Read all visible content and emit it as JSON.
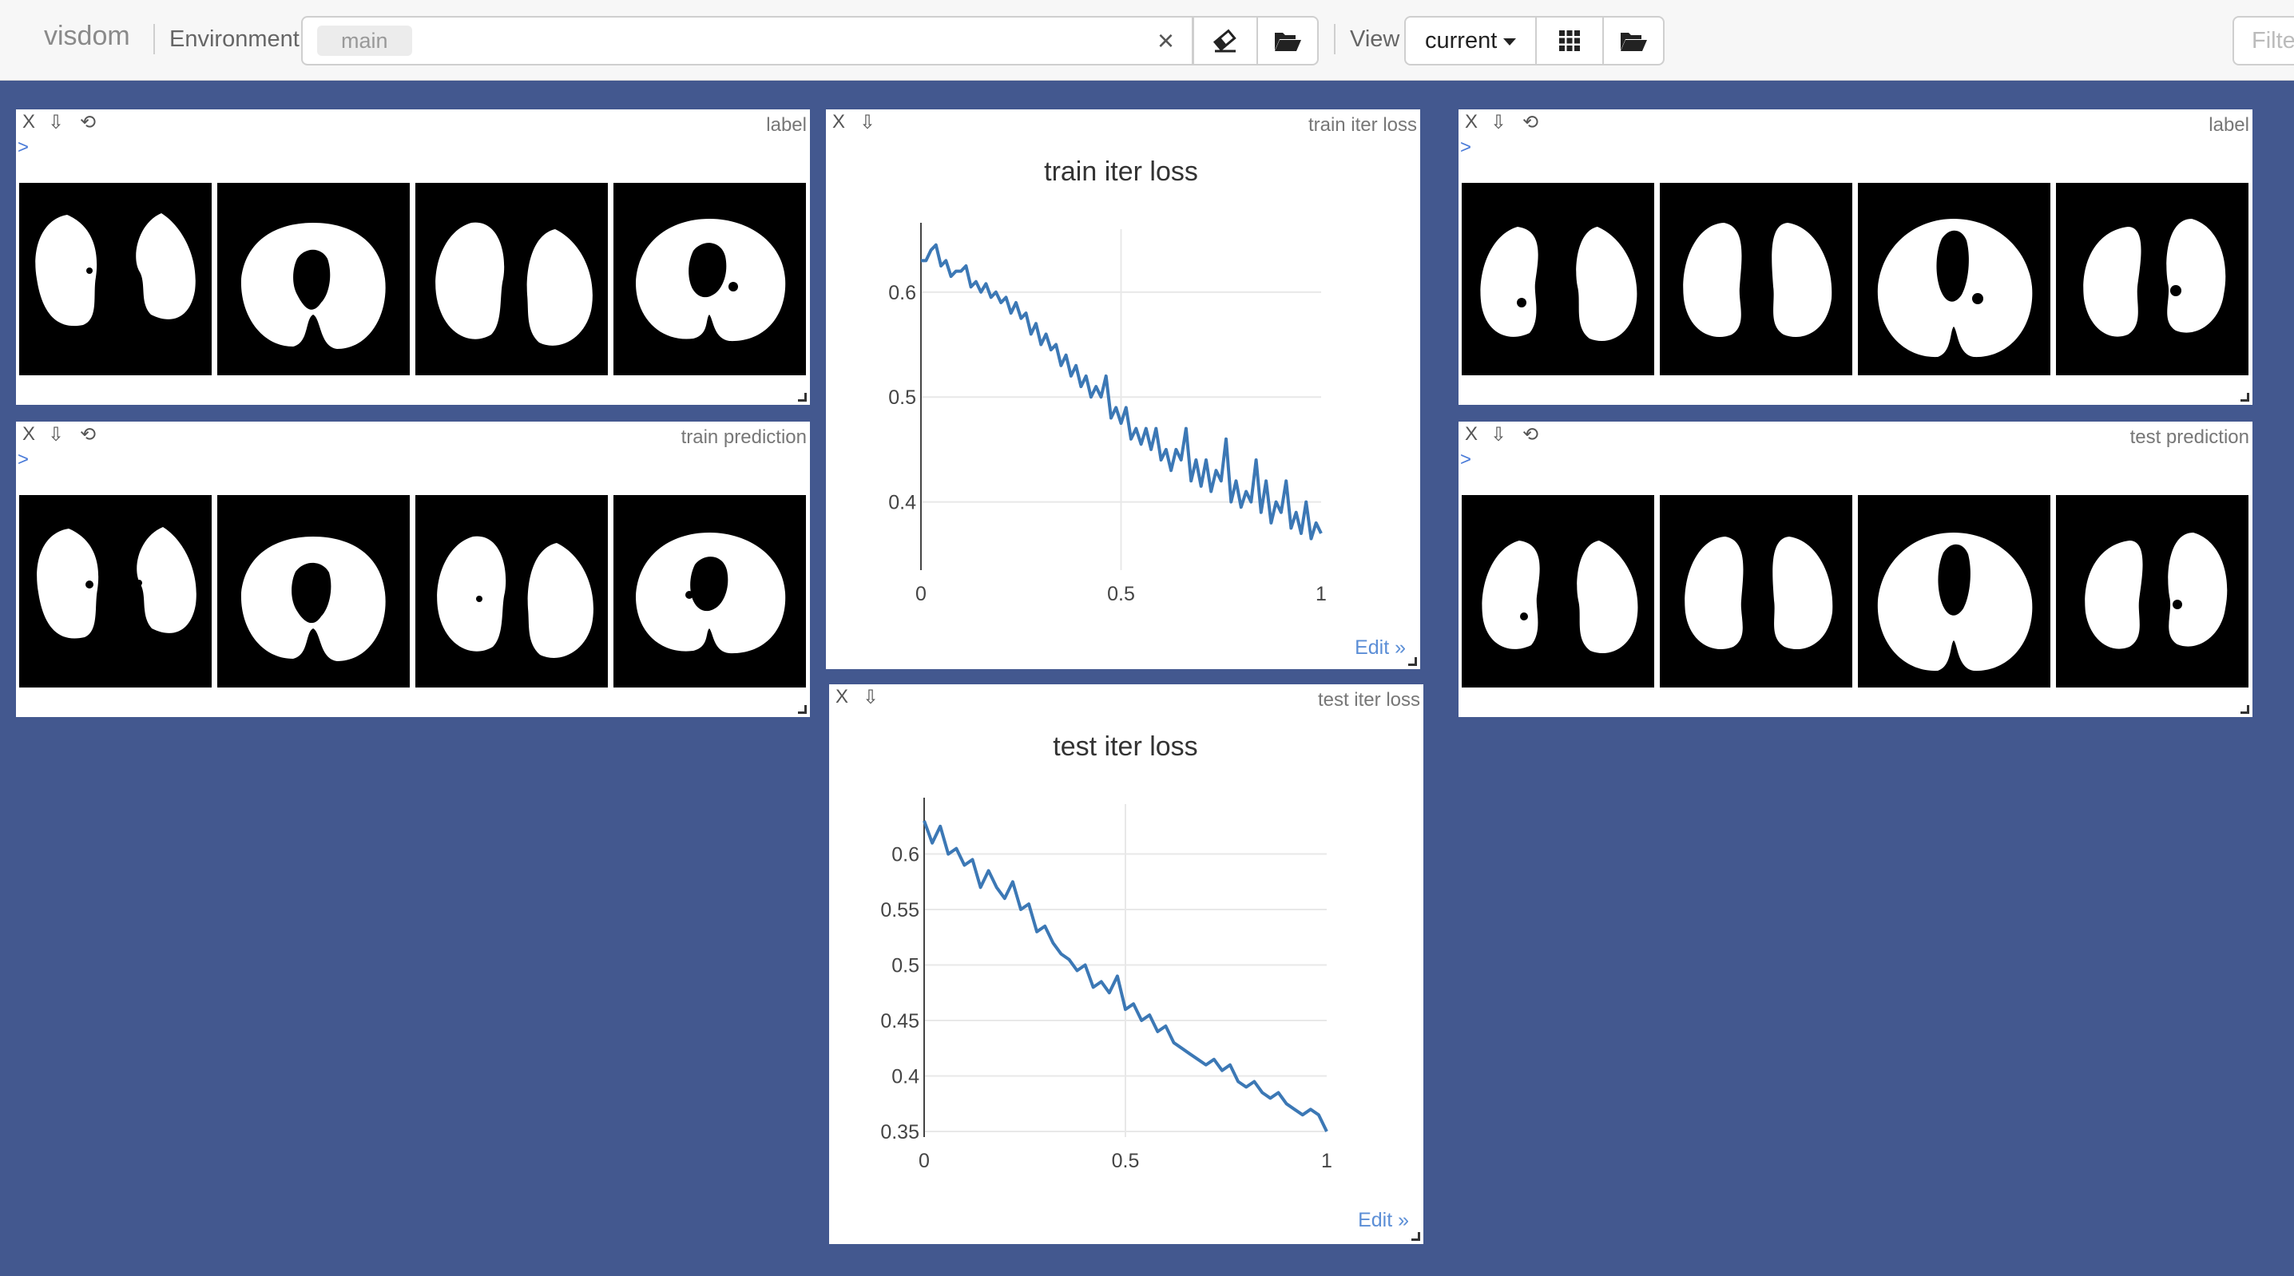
{
  "header": {
    "brand": "visdom",
    "environment_label": "Environment",
    "env_tag": "main",
    "clear_symbol": "×",
    "view_label": "View",
    "view_value": "current",
    "filter_placeholder": "Filte"
  },
  "colors": {
    "background": "#43588f",
    "line": "#3c78b5"
  },
  "panes": {
    "label_left": {
      "title": "label",
      "close": "X",
      "download": "⇩",
      "reset": "⟲",
      "toggle": ">"
    },
    "train_prediction": {
      "title": "train prediction",
      "close": "X",
      "download": "⇩",
      "reset": "⟲",
      "toggle": ">"
    },
    "label_right": {
      "title": "label",
      "close": "X",
      "download": "⇩",
      "reset": "⟲",
      "toggle": ">"
    },
    "test_prediction": {
      "title": "test prediction",
      "close": "X",
      "download": "⇩",
      "reset": "⟲",
      "toggle": ">"
    },
    "train_chart": {
      "title": "train iter loss",
      "close": "X",
      "download": "⇩",
      "edit": "Edit »"
    },
    "test_chart": {
      "title": "test iter loss",
      "close": "X",
      "download": "⇩",
      "edit": "Edit »"
    }
  },
  "chart_data": [
    {
      "type": "line",
      "title": "train iter loss",
      "xlim": [
        0,
        1
      ],
      "ylim": [
        0.335,
        0.66
      ],
      "xticks": [
        0,
        0.5,
        1
      ],
      "yticks": [
        0.4,
        0.5,
        0.6
      ],
      "ytick_labels": [
        "0.4",
        "0.5",
        "0.6"
      ],
      "xtick_labels": [
        "0",
        "0.5",
        "1"
      ],
      "grid": true,
      "x": [
        0,
        0.025,
        0.05,
        0.075,
        0.1,
        0.125,
        0.15,
        0.175,
        0.2,
        0.225,
        0.25,
        0.275,
        0.3,
        0.325,
        0.35,
        0.375,
        0.4,
        0.425,
        0.45,
        0.475,
        0.5,
        0.525,
        0.55,
        0.575,
        0.6,
        0.625,
        0.65,
        0.675,
        0.7,
        0.725,
        0.75,
        0.775,
        0.8,
        0.825,
        0.85,
        0.875,
        0.9,
        0.925,
        0.95,
        0.975,
        1
      ],
      "y": [
        0.63,
        0.64,
        0.625,
        0.615,
        0.62,
        0.605,
        0.6,
        0.595,
        0.59,
        0.58,
        0.575,
        0.56,
        0.55,
        0.545,
        0.53,
        0.52,
        0.51,
        0.5,
        0.5,
        0.48,
        0.475,
        0.46,
        0.455,
        0.45,
        0.44,
        0.43,
        0.44,
        0.42,
        0.415,
        0.41,
        0.42,
        0.4,
        0.395,
        0.4,
        0.39,
        0.38,
        0.39,
        0.375,
        0.37,
        0.365,
        0.37
      ],
      "y_spikes": [
        0.63,
        0.645,
        0.63,
        0.62,
        0.625,
        0.61,
        0.608,
        0.6,
        0.595,
        0.59,
        0.58,
        0.57,
        0.56,
        0.55,
        0.54,
        0.53,
        0.52,
        0.51,
        0.52,
        0.49,
        0.49,
        0.47,
        0.47,
        0.47,
        0.45,
        0.45,
        0.47,
        0.44,
        0.44,
        0.43,
        0.46,
        0.42,
        0.41,
        0.44,
        0.42,
        0.4,
        0.42,
        0.39,
        0.4,
        0.38,
        0.39
      ]
    },
    {
      "type": "line",
      "title": "test iter loss",
      "xlim": [
        0,
        1
      ],
      "ylim": [
        0.345,
        0.645
      ],
      "xticks": [
        0,
        0.5,
        1
      ],
      "yticks": [
        0.35,
        0.4,
        0.45,
        0.5,
        0.55,
        0.6
      ],
      "ytick_labels": [
        "0.35",
        "0.4",
        "0.45",
        "0.5",
        "0.55",
        "0.6"
      ],
      "xtick_labels": [
        "0",
        "0.5",
        "1"
      ],
      "grid": true,
      "x": [
        0,
        0.02,
        0.04,
        0.06,
        0.08,
        0.1,
        0.12,
        0.14,
        0.16,
        0.18,
        0.2,
        0.22,
        0.24,
        0.26,
        0.28,
        0.3,
        0.32,
        0.34,
        0.36,
        0.38,
        0.4,
        0.42,
        0.44,
        0.46,
        0.48,
        0.5,
        0.52,
        0.54,
        0.56,
        0.58,
        0.6,
        0.62,
        0.64,
        0.66,
        0.68,
        0.7,
        0.72,
        0.74,
        0.76,
        0.78,
        0.8,
        0.82,
        0.84,
        0.86,
        0.88,
        0.9,
        0.92,
        0.94,
        0.96,
        0.98,
        1
      ],
      "y": [
        0.63,
        0.61,
        0.625,
        0.6,
        0.605,
        0.59,
        0.595,
        0.57,
        0.585,
        0.57,
        0.56,
        0.575,
        0.55,
        0.555,
        0.53,
        0.535,
        0.52,
        0.51,
        0.505,
        0.495,
        0.5,
        0.48,
        0.485,
        0.475,
        0.49,
        0.46,
        0.465,
        0.45,
        0.455,
        0.44,
        0.445,
        0.43,
        0.425,
        0.42,
        0.415,
        0.41,
        0.415,
        0.405,
        0.41,
        0.395,
        0.39,
        0.395,
        0.385,
        0.38,
        0.385,
        0.375,
        0.37,
        0.365,
        0.37,
        0.365,
        0.35
      ]
    }
  ]
}
